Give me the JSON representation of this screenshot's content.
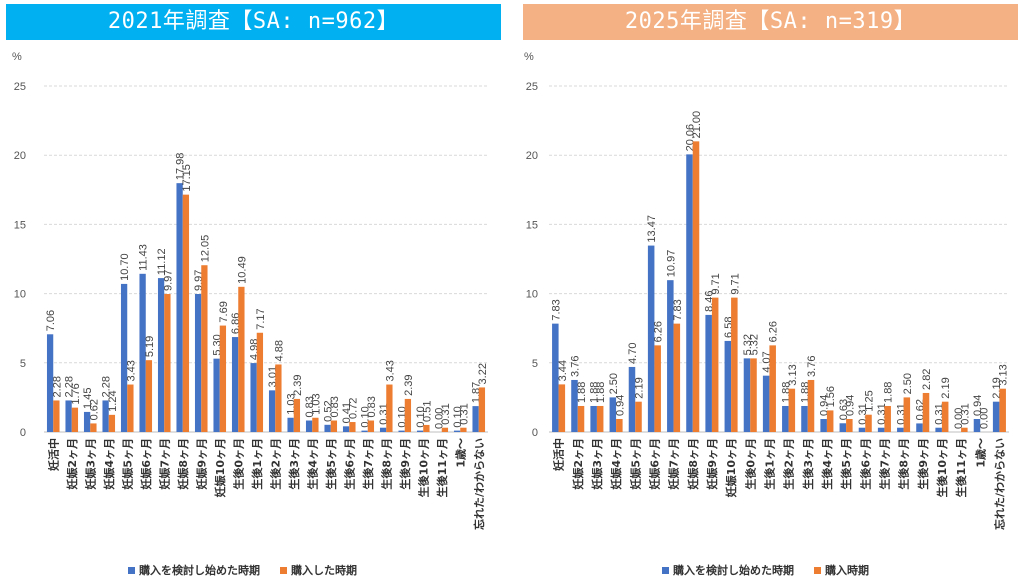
{
  "colors": {
    "blue": "#4472c4",
    "orange": "#ed7d31",
    "grid": "#d9d9d9",
    "axis": "#bfbfbf"
  },
  "chart_data": [
    {
      "type": "bar",
      "title": "2021年調査【SA: n=962】",
      "ylabel": "%",
      "ylim": [
        0,
        25
      ],
      "yticks": [
        "0",
        "5",
        "10",
        "15",
        "20",
        "25"
      ],
      "categories": [
        "妊活中",
        "妊娠2ヶ月",
        "妊娠3ヶ月",
        "妊娠4ヶ月",
        "妊娠5ヶ月",
        "妊娠6ヶ月",
        "妊娠7ヶ月",
        "妊娠8ヶ月",
        "妊娠9ヶ月",
        "妊娠10ヶ月",
        "生後0ヶ月",
        "生後1ヶ月",
        "生後2ヶ月",
        "生後3ヶ月",
        "生後4ヶ月",
        "生後5ヶ月",
        "生後6ヶ月",
        "生後7ヶ月",
        "生後8ヶ月",
        "生後9ヶ月",
        "生後10ヶ月",
        "生後11ヶ月",
        "1歳～",
        "忘れた/わからない"
      ],
      "series": [
        {
          "name": "購入を検討し始めた時期",
          "color": "#4472c4",
          "values": [
            7.06,
            2.28,
            1.45,
            2.28,
            10.7,
            11.43,
            11.12,
            17.98,
            9.97,
            5.3,
            6.86,
            4.98,
            3.01,
            1.03,
            0.83,
            0.52,
            0.41,
            0.1,
            0.31,
            0.1,
            0.1,
            0.0,
            0.1,
            1.87
          ],
          "labels": [
            "7.06",
            "2.28",
            "1.45",
            "2.28",
            "10.70",
            "11.43",
            "11.12",
            "17.98",
            "9.97",
            "5.30",
            "6.86",
            "4.98",
            "3.01",
            "1.03",
            "0.83",
            "0.52",
            "0.41",
            "0.10",
            "0.31",
            "0.10",
            "0.10",
            "0.00",
            "0.10",
            "1.87"
          ]
        },
        {
          "name": "購入した時期",
          "color": "#ed7d31",
          "values": [
            2.28,
            1.76,
            0.62,
            1.24,
            3.43,
            5.19,
            9.97,
            17.15,
            12.05,
            7.69,
            10.49,
            7.17,
            4.88,
            2.39,
            1.03,
            0.83,
            0.72,
            0.83,
            3.43,
            2.39,
            0.51,
            0.31,
            0.31,
            3.22
          ],
          "labels": [
            "2.28",
            "1.76",
            "0.62",
            "1.24",
            "3.43",
            "5.19",
            "9.97",
            "17.15",
            "12.05",
            "7.69",
            "10.49",
            "7.17",
            "4.88",
            "2.39",
            "1.03",
            "0.83",
            "0.72",
            "0.83",
            "3.43",
            "2.39",
            "0.51",
            "0.31",
            "0.31",
            "3.22"
          ]
        }
      ],
      "legend": [
        "購入を検討し始めた時期",
        "購入した時期"
      ]
    },
    {
      "type": "bar",
      "title": "2025年調査【SA: n=319】",
      "ylabel": "%",
      "ylim": [
        0,
        25
      ],
      "yticks": [
        "0",
        "5",
        "10",
        "15",
        "20",
        "25"
      ],
      "categories": [
        "妊活中",
        "妊娠2ヶ月",
        "妊娠3ヶ月",
        "妊娠4ヶ月",
        "妊娠5ヶ月",
        "妊娠6ヶ月",
        "妊娠7ヶ月",
        "妊娠8ヶ月",
        "妊娠9ヶ月",
        "妊娠10ヶ月",
        "生後0ヶ月",
        "生後1ヶ月",
        "生後2ヶ月",
        "生後3ヶ月",
        "生後4ヶ月",
        "生後5ヶ月",
        "生後6ヶ月",
        "生後7ヶ月",
        "生後8ヶ月",
        "生後9ヶ月",
        "生後10ヶ月",
        "生後11ヶ月",
        "1歳～",
        "忘れた/わからない"
      ],
      "series": [
        {
          "name": "購入を検討し始めた時期",
          "color": "#4472c4",
          "values": [
            7.83,
            3.76,
            1.88,
            2.5,
            4.7,
            13.47,
            10.97,
            20.06,
            8.46,
            6.58,
            5.32,
            4.07,
            1.88,
            1.88,
            0.94,
            0.63,
            0.31,
            0.31,
            0.31,
            0.62,
            0.31,
            0.0,
            0.94,
            2.19
          ],
          "labels": [
            "7.83",
            "3.76",
            "1.88",
            "2.50",
            "4.70",
            "13.47",
            "10.97",
            "20.06",
            "8.46",
            "6.58",
            "5.32",
            "4.07",
            "1.88",
            "1.88",
            "0.94",
            "0.63",
            "0.31",
            "0.31",
            "0.31",
            "0.62",
            "0.31",
            "0.00",
            "0.94",
            "2.19"
          ]
        },
        {
          "name": "購入時期",
          "color": "#ed7d31",
          "values": [
            3.44,
            1.88,
            1.88,
            0.94,
            2.19,
            6.26,
            7.83,
            21.0,
            9.71,
            9.71,
            5.32,
            6.26,
            3.13,
            3.76,
            1.56,
            0.94,
            1.25,
            1.88,
            2.5,
            2.82,
            2.19,
            0.31,
            0.0,
            3.13
          ],
          "labels": [
            "3.44",
            "1.88",
            "1.88",
            "0.94",
            "2.19",
            "6.26",
            "7.83",
            "21.00",
            "9.71",
            "9.71",
            "5.32",
            "6.26",
            "3.13",
            "3.76",
            "1.56",
            "0.94",
            "1.25",
            "1.88",
            "2.50",
            "2.82",
            "2.19",
            "0.31",
            "0.00",
            "3.13"
          ]
        }
      ],
      "legend": [
        "購入を検討し始めた時期",
        "購入時期"
      ]
    }
  ]
}
